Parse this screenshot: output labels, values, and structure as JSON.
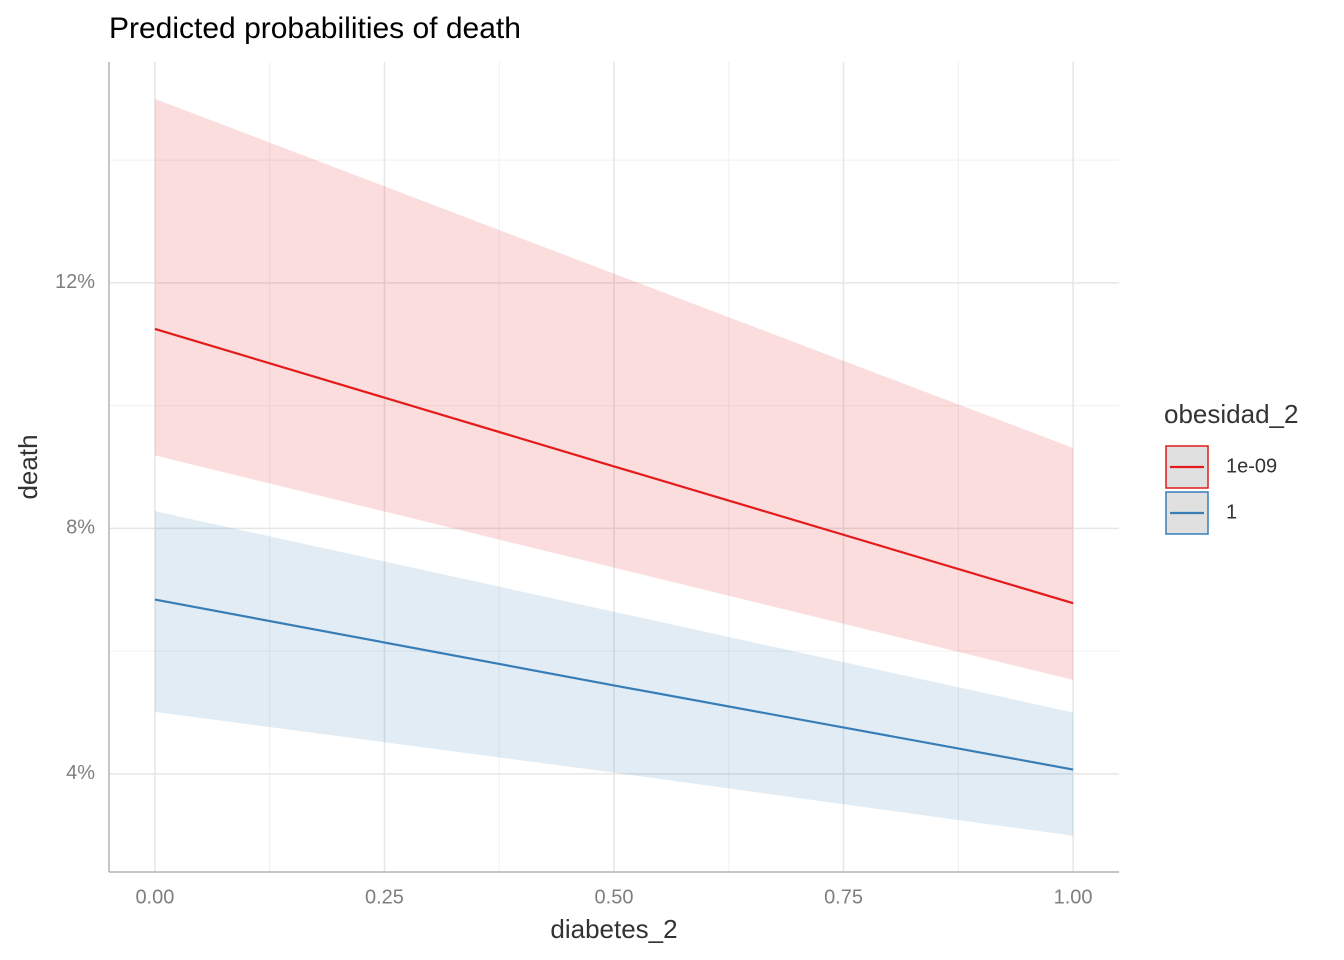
{
  "chart_data": {
    "type": "line",
    "title": "Predicted probabilities of death",
    "x_label": "diabetes_2",
    "y_label": "death",
    "x": [
      0,
      0.5,
      1
    ],
    "series": [
      {
        "name": "1e-09",
        "color": "#e41a1c",
        "values": [
          11.25,
          9.01,
          6.78
        ],
        "lower": [
          9.19,
          7.36,
          5.53
        ],
        "upper": [
          15.0,
          12.15,
          9.31
        ]
      },
      {
        "name": "1",
        "color": "#377eb8",
        "values": [
          6.84,
          5.44,
          4.07
        ],
        "lower": [
          5.01,
          4.02,
          2.99
        ],
        "upper": [
          8.28,
          6.64,
          5.0
        ]
      }
    ],
    "legend_title": "obesidad_2",
    "legend": "right",
    "xlim": [
      -0.05,
      1.05
    ],
    "ylim": [
      2.4,
      15.6
    ],
    "xticks": [
      {
        "value": 0,
        "label": "0.00"
      },
      {
        "value": 0.25,
        "label": "0.25"
      },
      {
        "value": 0.5,
        "label": "0.50"
      },
      {
        "value": 0.75,
        "label": "0.75"
      },
      {
        "value": 1,
        "label": "1.00"
      }
    ],
    "yticks": [
      {
        "value": 4,
        "label": "4%"
      },
      {
        "value": 8,
        "label": "8%"
      },
      {
        "value": 12,
        "label": "12%"
      }
    ],
    "x_minor_ticks": [
      0.125,
      0.375,
      0.625,
      0.875
    ],
    "y_minor_ticks": [
      6,
      10,
      14
    ],
    "grid": true
  }
}
